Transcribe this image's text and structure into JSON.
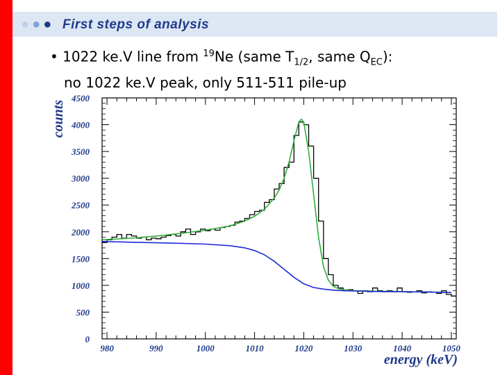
{
  "header": {
    "title": "First steps of analysis",
    "dot_colors": [
      "#bcd1ea",
      "#7fa3d6",
      "#1e3a8a"
    ],
    "accent": "#ff0000",
    "bg": "#dde7f3"
  },
  "bullet": {
    "marker": "•",
    "p1": " 1022 ke.V line from ",
    "sup1": "19",
    "p2": "Ne (same T",
    "sub1": "1/2",
    "p3": ", same Q",
    "sub2": "EC",
    "p4": "):",
    "line2": "no 1022 ke.V peak, only 511-511 pile-up"
  },
  "chart_data": {
    "type": "line",
    "xlabel": "energy (keV)",
    "ylabel": "counts",
    "xlim": [
      979,
      1051
    ],
    "ylim": [
      0,
      4500
    ],
    "xticks": [
      980,
      990,
      1000,
      1010,
      1020,
      1030,
      1040,
      1050
    ],
    "yticks": [
      0,
      500,
      1000,
      1500,
      2000,
      2500,
      3000,
      3500,
      4000,
      4500
    ],
    "grid": false,
    "series": [
      {
        "style": "histogram",
        "color": "#000000",
        "bin_width": 1,
        "x": [
          979,
          980,
          981,
          982,
          983,
          984,
          985,
          986,
          987,
          988,
          989,
          990,
          991,
          992,
          993,
          994,
          995,
          996,
          997,
          998,
          999,
          1000,
          1001,
          1002,
          1003,
          1004,
          1005,
          1006,
          1007,
          1008,
          1009,
          1010,
          1011,
          1012,
          1013,
          1014,
          1015,
          1016,
          1017,
          1018,
          1019,
          1020,
          1021,
          1022,
          1023,
          1024,
          1025,
          1026,
          1027,
          1028,
          1029,
          1030,
          1031,
          1032,
          1033,
          1034,
          1035,
          1036,
          1037,
          1038,
          1039,
          1040,
          1041,
          1042,
          1043,
          1044,
          1045,
          1046,
          1047,
          1048,
          1049,
          1050
        ],
        "y": [
          1800,
          1850,
          1900,
          1950,
          1880,
          1950,
          1920,
          1880,
          1900,
          1850,
          1880,
          1870,
          1900,
          1930,
          1950,
          1920,
          2000,
          2050,
          1950,
          2000,
          2050,
          2020,
          2050,
          2030,
          2080,
          2100,
          2120,
          2180,
          2200,
          2250,
          2320,
          2380,
          2400,
          2550,
          2600,
          2800,
          2900,
          3200,
          3300,
          3800,
          4050,
          4000,
          3600,
          3000,
          2200,
          1500,
          1200,
          1000,
          950,
          900,
          920,
          900,
          850,
          900,
          880,
          950,
          900,
          880,
          900,
          880,
          950,
          880,
          870,
          880,
          900,
          860,
          880,
          870,
          850,
          900,
          830,
          800
        ]
      },
      {
        "style": "curve",
        "color": "#2fae3a",
        "x": [
          979,
          985,
          990,
          995,
          1000,
          1005,
          1008,
          1010,
          1012,
          1014,
          1015,
          1016,
          1017,
          1018,
          1019,
          1019.5,
          1020,
          1021,
          1022,
          1023,
          1024,
          1025,
          1026,
          1027,
          1028,
          1030,
          1035,
          1040,
          1045,
          1050
        ],
        "y": [
          1850,
          1880,
          1920,
          1970,
          2030,
          2110,
          2200,
          2290,
          2420,
          2630,
          2780,
          3000,
          3300,
          3700,
          4050,
          4100,
          4050,
          3500,
          2700,
          1900,
          1350,
          1100,
          980,
          940,
          920,
          900,
          890,
          885,
          875,
          865
        ]
      },
      {
        "style": "curve",
        "color": "#1f2ad6",
        "x": [
          979,
          985,
          990,
          995,
          1000,
          1005,
          1008,
          1010,
          1012,
          1014,
          1016,
          1018,
          1020,
          1022,
          1024,
          1026,
          1028,
          1030,
          1035,
          1040,
          1045,
          1050
        ],
        "y": [
          1820,
          1805,
          1795,
          1785,
          1770,
          1740,
          1700,
          1650,
          1570,
          1450,
          1300,
          1150,
          1030,
          960,
          930,
          910,
          900,
          895,
          885,
          880,
          875,
          865
        ]
      }
    ]
  }
}
